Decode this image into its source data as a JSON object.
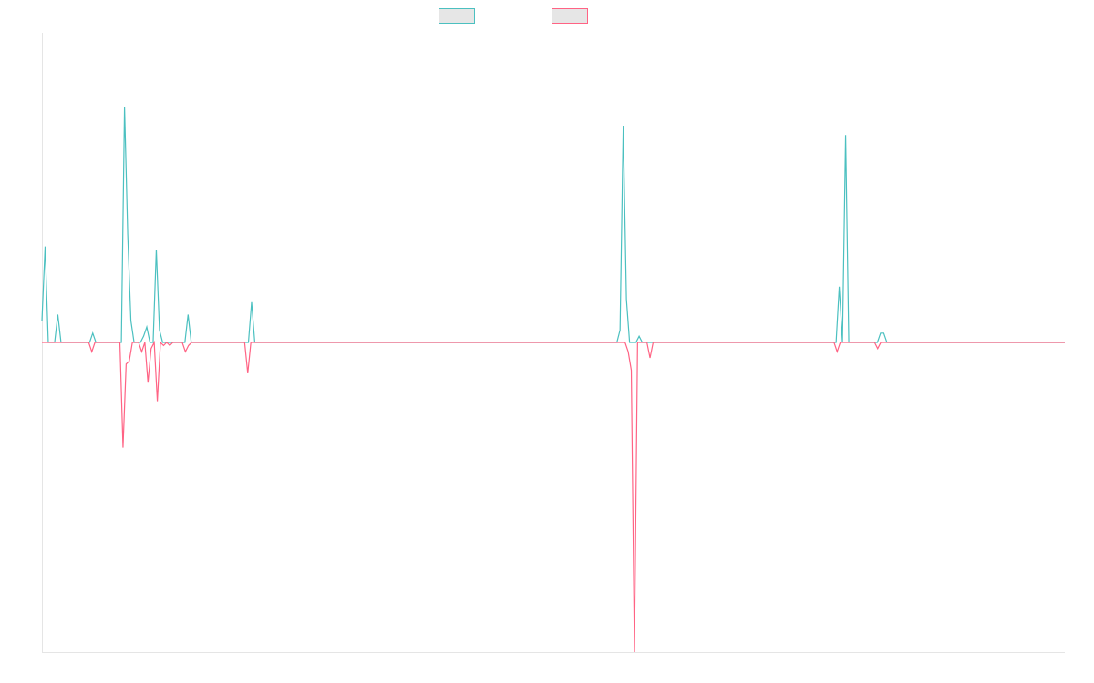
{
  "chart_data": {
    "type": "line",
    "title": "",
    "xlabel": "",
    "ylabel": "",
    "grid": false,
    "legend_position": "top-center",
    "ylim": [
      -100,
      100
    ],
    "series": [
      {
        "color": "#4bc0c0",
        "fill": "#e6e6e6",
        "values": [
          7,
          31,
          0,
          0,
          0,
          9,
          0,
          0,
          0,
          0,
          0,
          0,
          0,
          0,
          0,
          0,
          3,
          0,
          0,
          0,
          0,
          0,
          0,
          0,
          0,
          0,
          76,
          35,
          7,
          0,
          0,
          0,
          2,
          5,
          0,
          0,
          30,
          4,
          0,
          0,
          0,
          0,
          0,
          0,
          0,
          0,
          9,
          0,
          0,
          0,
          0,
          0,
          0,
          0,
          0,
          0,
          0,
          0,
          0,
          0,
          0,
          0,
          0,
          0,
          0,
          0,
          13,
          0,
          0,
          0,
          0,
          0,
          0,
          0,
          0,
          0,
          0,
          0,
          0,
          0,
          0,
          0,
          0,
          0,
          0,
          0,
          0,
          0,
          0,
          0,
          0,
          0,
          0,
          0,
          0,
          0,
          0,
          0,
          0,
          0,
          0,
          0,
          0,
          0,
          0,
          0,
          0,
          0,
          0,
          0,
          0,
          0,
          0,
          0,
          0,
          0,
          0,
          0,
          0,
          0,
          0,
          0,
          0,
          0,
          0,
          0,
          0,
          0,
          0,
          0,
          0,
          0,
          0,
          0,
          0,
          0,
          0,
          0,
          0,
          0,
          0,
          0,
          0,
          0,
          0,
          0,
          0,
          0,
          0,
          0,
          0,
          0,
          0,
          0,
          0,
          0,
          0,
          0,
          0,
          0,
          0,
          0,
          0,
          0,
          0,
          0,
          0,
          0,
          0,
          0,
          0,
          0,
          0,
          0,
          0,
          0,
          0,
          0,
          0,
          0,
          0,
          0,
          4,
          70,
          14,
          0,
          0,
          0,
          2,
          0,
          0,
          0,
          0,
          0,
          0,
          0,
          0,
          0,
          0,
          0,
          0,
          0,
          0,
          0,
          0,
          0,
          0,
          0,
          0,
          0,
          0,
          0,
          0,
          0,
          0,
          0,
          0,
          0,
          0,
          0,
          0,
          0,
          0,
          0,
          0,
          0,
          0,
          0,
          0,
          0,
          0,
          0,
          0,
          0,
          0,
          0,
          0,
          0,
          0,
          0,
          0,
          0,
          0,
          0,
          0,
          0,
          0,
          0,
          0,
          0,
          0,
          18,
          0,
          67,
          0,
          0,
          0,
          0,
          0,
          0,
          0,
          0,
          0,
          0,
          3,
          3,
          0,
          0,
          0,
          0,
          0,
          0,
          0,
          0,
          0,
          0,
          0,
          0,
          0,
          0,
          0,
          0,
          0,
          0,
          0,
          0,
          0,
          0,
          0,
          0,
          0,
          0,
          0,
          0,
          0,
          0,
          0,
          0,
          0,
          0,
          0,
          0,
          0,
          0,
          0,
          0,
          0,
          0,
          0,
          0,
          0,
          0,
          0,
          0,
          0,
          0,
          0,
          0,
          0,
          0,
          0,
          0,
          0
        ]
      },
      {
        "color": "#ff6384",
        "fill": "#e6e6e6",
        "values": [
          0,
          0,
          0,
          0,
          0,
          0,
          0,
          0,
          0,
          0,
          0,
          0,
          0,
          0,
          0,
          0,
          -3,
          0,
          0,
          0,
          0,
          0,
          0,
          0,
          0,
          0,
          -34,
          -7,
          -6,
          0,
          0,
          0,
          -3,
          0,
          -13,
          -2,
          0,
          -19,
          0,
          -1,
          0,
          -1,
          0,
          0,
          0,
          0,
          -3,
          -1,
          0,
          0,
          0,
          0,
          0,
          0,
          0,
          0,
          0,
          0,
          0,
          0,
          0,
          0,
          0,
          0,
          0,
          0,
          -10,
          0,
          0,
          0,
          0,
          0,
          0,
          0,
          0,
          0,
          0,
          0,
          0,
          0,
          0,
          0,
          0,
          0,
          0,
          0,
          0,
          0,
          0,
          0,
          0,
          0,
          0,
          0,
          0,
          0,
          0,
          0,
          0,
          0,
          0,
          0,
          0,
          0,
          0,
          0,
          0,
          0,
          0,
          0,
          0,
          0,
          0,
          0,
          0,
          0,
          0,
          0,
          0,
          0,
          0,
          0,
          0,
          0,
          0,
          0,
          0,
          0,
          0,
          0,
          0,
          0,
          0,
          0,
          0,
          0,
          0,
          0,
          0,
          0,
          0,
          0,
          0,
          0,
          0,
          0,
          0,
          0,
          0,
          0,
          0,
          0,
          0,
          0,
          0,
          0,
          0,
          0,
          0,
          0,
          0,
          0,
          0,
          0,
          0,
          0,
          0,
          0,
          0,
          0,
          0,
          0,
          0,
          0,
          0,
          0,
          0,
          0,
          0,
          0,
          0,
          0,
          0,
          0,
          0,
          0,
          0,
          0,
          -3,
          -9,
          -100,
          0,
          0,
          0,
          0,
          -5,
          0,
          0,
          0,
          0,
          0,
          0,
          0,
          0,
          0,
          0,
          0,
          0,
          0,
          0,
          0,
          0,
          0,
          0,
          0,
          0,
          0,
          0,
          0,
          0,
          0,
          0,
          0,
          0,
          0,
          0,
          0,
          0,
          0,
          0,
          0,
          0,
          0,
          0,
          0,
          0,
          0,
          0,
          0,
          0,
          0,
          0,
          0,
          0,
          0,
          0,
          0,
          0,
          0,
          0,
          0,
          0,
          0,
          0,
          0,
          -3,
          0,
          0,
          0,
          0,
          0,
          0,
          0,
          0,
          0,
          0,
          0,
          0,
          -2,
          0,
          0,
          0,
          0,
          0,
          0,
          0,
          0,
          0,
          0,
          0,
          0,
          0,
          0,
          0,
          0,
          0,
          0,
          0,
          0,
          0,
          0,
          0,
          0,
          0,
          0,
          0,
          0,
          0,
          0,
          0,
          0,
          0,
          0,
          0,
          0,
          0,
          0,
          0,
          0,
          0,
          0,
          0,
          0,
          0,
          0,
          0,
          0,
          0,
          0,
          0,
          0,
          0,
          0,
          0,
          0,
          0,
          0,
          0,
          0
        ]
      }
    ]
  }
}
